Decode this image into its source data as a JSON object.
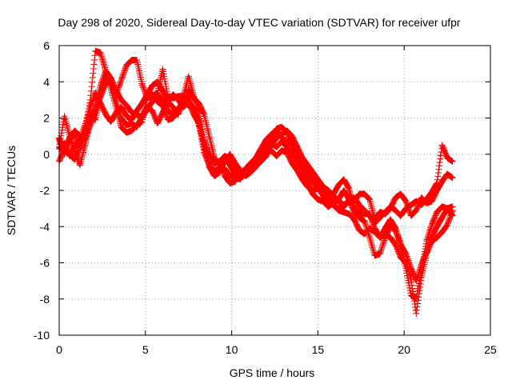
{
  "chart_data": {
    "type": "scatter",
    "title": "Day 298 of 2020, Sidereal Day-to-day VTEC variation (SDTVAR) for receiver ufpr",
    "xlabel": "GPS time / hours",
    "ylabel": "SDTVAR / TECUs",
    "xlim": [
      0,
      25
    ],
    "ylim": [
      -10,
      6
    ],
    "xticks": [
      0,
      5,
      10,
      15,
      20,
      25
    ],
    "yticks": [
      -10,
      -8,
      -6,
      -4,
      -2,
      0,
      2,
      4,
      6
    ],
    "grid": true,
    "marker": "plus",
    "color": "#ff0000",
    "series": [
      {
        "x": [
          0.0,
          0.3,
          0.6,
          0.9,
          1.2,
          1.5,
          1.8,
          2.1,
          2.4,
          2.7,
          3.0,
          3.3,
          3.6,
          3.9,
          4.2,
          4.5,
          4.8,
          5.1,
          5.4,
          5.7,
          6.0,
          6.3,
          6.6,
          6.9,
          7.2,
          7.5,
          7.8,
          8.1,
          8.4,
          8.7,
          9.0,
          9.3,
          9.6,
          9.9,
          10.2,
          10.5,
          10.8,
          11.1,
          11.4,
          11.7,
          12.0,
          12.3,
          12.6,
          12.9,
          13.2,
          13.5,
          13.8,
          14.1,
          14.4,
          14.7,
          15.0,
          15.3,
          15.6,
          15.9,
          16.2,
          16.5,
          16.8,
          17.1,
          17.4,
          17.7,
          18.0,
          18.3,
          18.6,
          18.9,
          19.2,
          19.5,
          19.8,
          20.1,
          20.4,
          20.7,
          21.0,
          21.3,
          21.6,
          21.9,
          22.2,
          22.5,
          22.8
        ],
        "y": [
          0.9,
          0.2,
          0.0,
          -0.3,
          0.4,
          1.2,
          3.0,
          5.7,
          5.6,
          4.6,
          3.6,
          2.6,
          1.5,
          1.2,
          1.3,
          1.6,
          1.8,
          3.1,
          3.2,
          3.4,
          4.7,
          3.2,
          3.1,
          3.2,
          3.2,
          4.3,
          3.2,
          2.4,
          0.8,
          0.0,
          -0.5,
          -0.4,
          -1.2,
          -1.6,
          -1.5,
          -1.0,
          -0.9,
          -0.5,
          -0.3,
          0.0,
          0.3,
          0.6,
          0.4,
          0.7,
          0.4,
          0.0,
          -0.4,
          -0.9,
          -1.6,
          -2.2,
          -2.5,
          -2.6,
          -2.9,
          -2.7,
          -2.5,
          -2.0,
          -2.5,
          -3.2,
          -3.5,
          -3.7,
          -4.6,
          -5.6,
          -5.5,
          -4.6,
          -4.0,
          -4.2,
          -5.0,
          -6.3,
          -7.8,
          -8.0,
          -6.4,
          -4.8,
          -3.9,
          -3.2,
          -2.9,
          -3.0,
          -2.9
        ]
      },
      {
        "x": [
          0.0,
          0.3,
          0.6,
          0.9,
          1.2,
          1.5,
          1.8,
          2.1,
          2.4,
          2.7,
          3.0,
          3.3,
          3.6,
          3.9,
          4.2,
          4.5,
          4.8,
          5.1,
          5.4,
          5.7,
          6.0,
          6.3,
          6.6,
          6.9,
          7.2,
          7.5,
          7.8,
          8.1,
          8.4,
          8.7,
          9.0,
          9.3,
          9.6,
          9.9,
          10.2,
          10.5,
          10.8,
          11.1,
          11.4,
          11.7,
          12.0,
          12.3,
          12.6,
          12.9,
          13.2,
          13.5,
          13.8,
          14.1,
          14.4,
          14.7,
          15.0,
          15.3,
          15.6,
          15.9,
          16.2,
          16.5,
          16.8,
          17.1,
          17.4,
          17.7,
          18.0,
          18.3,
          18.6,
          18.9,
          19.2,
          19.5,
          19.8,
          20.1,
          20.4,
          20.7,
          21.0,
          21.3,
          21.6,
          21.9,
          22.2,
          22.5,
          22.8
        ],
        "y": [
          -0.4,
          0.3,
          0.9,
          1.3,
          1.0,
          0.8,
          1.6,
          2.3,
          3.2,
          3.9,
          4.2,
          3.5,
          3.0,
          2.7,
          2.3,
          2.2,
          2.0,
          2.5,
          2.9,
          3.3,
          3.0,
          2.4,
          2.2,
          2.5,
          2.9,
          2.7,
          2.6,
          1.6,
          0.6,
          -0.7,
          -1.2,
          -1.0,
          -0.3,
          -0.6,
          -1.1,
          -1.3,
          -0.9,
          -0.6,
          -0.5,
          -0.3,
          0.1,
          0.2,
          -0.1,
          0.2,
          0.1,
          -0.5,
          -0.9,
          -1.4,
          -1.8,
          -2.0,
          -1.9,
          -2.1,
          -2.2,
          -2.8,
          -3.1,
          -3.2,
          -3.3,
          -3.6,
          -4.2,
          -4.4,
          -4.1,
          -4.3,
          -4.6,
          -4.1,
          -3.6,
          -4.1,
          -5.0,
          -5.5,
          -6.3,
          -7.0,
          -6.1,
          -5.4,
          -4.6,
          -4.0,
          -3.5,
          -3.0,
          -3.4
        ]
      },
      {
        "x": [
          0.0,
          0.3,
          0.6,
          0.9,
          1.2,
          1.5,
          1.8,
          2.1,
          2.4,
          2.7,
          3.0,
          3.3,
          3.6,
          3.9,
          4.2,
          4.5,
          4.8,
          5.1,
          5.4,
          5.7,
          6.0,
          6.3,
          6.6,
          6.9,
          7.2,
          7.5,
          7.8,
          8.1,
          8.4,
          8.7,
          9.0,
          9.3,
          9.6,
          9.9,
          10.2,
          10.5,
          10.8,
          11.1,
          11.4,
          11.7,
          12.0,
          12.3,
          12.6,
          12.9,
          13.2,
          13.5,
          13.8,
          14.1,
          14.4,
          14.7,
          15.0,
          15.3,
          15.6,
          15.9,
          16.2,
          16.5,
          16.8,
          17.1,
          17.4,
          17.7,
          18.0,
          18.3,
          18.6,
          18.9,
          19.2,
          19.5,
          19.8,
          20.1,
          20.4,
          20.7,
          21.0,
          21.3,
          21.6,
          21.9,
          22.2,
          22.5,
          22.8
        ],
        "y": [
          0.4,
          2.1,
          1.0,
          0.2,
          -0.6,
          0.5,
          1.8,
          2.7,
          3.8,
          4.6,
          4.2,
          3.0,
          2.0,
          1.6,
          1.7,
          1.5,
          2.1,
          2.6,
          2.4,
          1.7,
          2.3,
          2.9,
          2.6,
          2.2,
          3.0,
          3.2,
          2.4,
          1.9,
          0.3,
          -0.2,
          -0.5,
          -0.4,
          -0.1,
          -0.3,
          -0.9,
          -1.1,
          -1.0,
          -0.7,
          -0.6,
          -0.2,
          0.4,
          0.9,
          1.4,
          1.5,
          1.2,
          0.5,
          -0.1,
          -0.3,
          -0.9,
          -1.5,
          -1.8,
          -2.1,
          -2.6,
          -2.2,
          -1.7,
          -1.4,
          -1.9,
          -2.9,
          -3.2,
          -3.3,
          -3.3,
          -4.1,
          -4.6,
          -4.4,
          -4.6,
          -5.0,
          -5.7,
          -6.0,
          -6.9,
          -8.8,
          -6.8,
          -5.5,
          -4.8,
          -4.6,
          -4.3,
          -3.9,
          -3.1
        ]
      },
      {
        "x": [
          0.0,
          0.3,
          0.6,
          0.9,
          1.2,
          1.5,
          1.8,
          2.1,
          2.4,
          2.7,
          3.0,
          3.3,
          3.6,
          3.9,
          4.2,
          4.5,
          4.8,
          5.1,
          5.4,
          5.7,
          6.0,
          6.3,
          6.6,
          6.9,
          7.2,
          7.5,
          7.8,
          8.1,
          8.4,
          8.7,
          9.0,
          9.3,
          9.6,
          9.9,
          10.2,
          10.5,
          10.8,
          11.1,
          11.4,
          11.7,
          12.0,
          12.3,
          12.6,
          12.9,
          13.2,
          13.5,
          13.8,
          14.1,
          14.4,
          14.7,
          15.0,
          15.3,
          15.6,
          15.9,
          16.2,
          16.5,
          16.8,
          17.1,
          17.4,
          17.7,
          18.0,
          18.3,
          18.6,
          18.9,
          19.2,
          19.5,
          19.8,
          20.1,
          20.4,
          20.7,
          21.0,
          21.3,
          21.6,
          21.9,
          22.2,
          22.5,
          22.8
        ],
        "y": [
          0.8,
          0.0,
          0.8,
          1.1,
          0.3,
          1.2,
          2.2,
          1.9,
          3.3,
          4.3,
          3.9,
          3.3,
          4.1,
          4.9,
          5.2,
          5.2,
          3.9,
          3.1,
          3.3,
          2.9,
          2.7,
          1.9,
          2.0,
          2.4,
          2.8,
          3.6,
          3.1,
          2.8,
          2.2,
          1.0,
          -0.2,
          -0.6,
          -0.8,
          -1.2,
          -1.2,
          -1.4,
          -0.8,
          -0.5,
          -0.2,
          0.3,
          0.8,
          1.1,
          1.3,
          0.9,
          0.7,
          0.6,
          0.2,
          -0.4,
          -1.1,
          -1.6,
          -1.8,
          -2.3,
          -2.6,
          -2.8,
          -3.0,
          -2.9,
          -2.6,
          -2.6,
          -2.2,
          -2.2,
          -2.5,
          -3.6,
          -3.2,
          -3.3,
          -3.0,
          -2.4,
          -2.2,
          -2.6,
          -3.4,
          -3.1,
          -2.4,
          -2.7,
          -2.6,
          -2.0,
          -1.5,
          -1.1,
          -1.3
        ]
      },
      {
        "x": [
          0.0,
          0.3,
          0.6,
          0.9,
          1.2,
          1.5,
          1.8,
          2.1,
          2.4,
          2.7,
          3.0,
          3.3,
          3.6,
          3.9,
          4.2,
          4.5,
          4.8,
          5.1,
          5.4,
          5.7,
          6.0,
          6.3,
          6.6,
          6.9,
          7.2,
          7.5,
          7.8,
          8.1,
          8.4,
          8.7,
          9.0,
          9.3,
          9.6,
          9.9,
          10.2,
          10.5,
          10.8,
          11.1,
          11.4,
          11.7,
          12.0,
          12.3,
          12.6,
          12.9,
          13.2,
          13.5,
          13.8,
          14.1,
          14.4,
          14.7,
          15.0,
          15.3,
          15.6,
          15.9,
          16.2,
          16.5,
          16.8,
          17.1,
          17.4,
          17.7,
          18.0,
          18.3,
          18.6,
          18.9,
          19.2,
          19.5,
          19.8,
          20.1,
          20.4,
          20.7,
          21.0,
          21.3,
          21.6,
          21.9,
          22.2,
          22.5,
          22.8
        ],
        "y": [
          0.3,
          0.6,
          -0.1,
          0.5,
          0.8,
          1.6,
          2.6,
          3.4,
          2.8,
          2.2,
          1.8,
          2.3,
          2.6,
          2.1,
          1.9,
          2.4,
          2.8,
          3.3,
          3.8,
          4.0,
          3.5,
          2.9,
          3.3,
          3.0,
          2.6,
          2.9,
          2.2,
          1.7,
          0.1,
          -0.6,
          -0.9,
          -0.8,
          -0.4,
          0.0,
          -0.5,
          -0.9,
          -1.2,
          -1.0,
          -0.7,
          -0.4,
          -0.1,
          0.5,
          0.9,
          1.1,
          1.3,
          1.0,
          0.4,
          -0.2,
          -0.6,
          -1.0,
          -1.4,
          -1.8,
          -2.0,
          -2.3,
          -2.6,
          -2.8,
          -2.6,
          -2.4,
          -2.8,
          -3.1,
          -3.4,
          -3.8,
          -3.5,
          -3.2,
          -2.9,
          -3.1,
          -3.4,
          -3.0,
          -2.8,
          -2.6,
          -2.8,
          -2.5,
          -2.1,
          -1.6,
          0.5,
          -0.2,
          -0.4
        ]
      }
    ]
  }
}
